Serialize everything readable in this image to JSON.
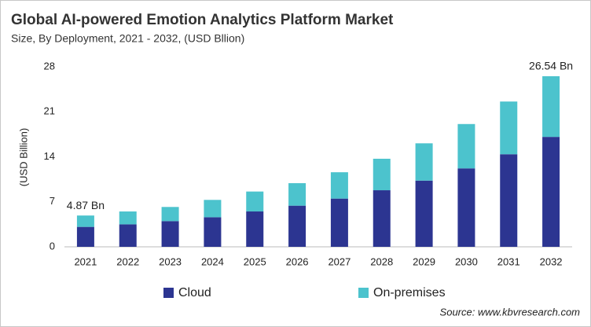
{
  "chart_data": {
    "type": "stacked_bar",
    "title": "Global AI-powered Emotion Analytics Platform Market",
    "subtitle": "Size, By Deployment, 2021 - 2032, (USD Bllion)",
    "y_label": "(USD Billion)",
    "source": "Source: www.kbvresearch.com",
    "categories": [
      "2021",
      "2022",
      "2023",
      "2024",
      "2025",
      "2026",
      "2027",
      "2028",
      "2029",
      "2030",
      "2031",
      "2032"
    ],
    "series": [
      {
        "name": "Cloud",
        "color": "#2c3591",
        "values": [
          3.1,
          3.5,
          4.0,
          4.6,
          5.5,
          6.4,
          7.5,
          8.8,
          10.3,
          12.2,
          14.4,
          17.1
        ]
      },
      {
        "name": "On-premises",
        "color": "#4cc3cd",
        "values": [
          1.77,
          2.0,
          2.2,
          2.7,
          3.1,
          3.5,
          4.1,
          4.9,
          5.8,
          6.9,
          8.2,
          9.44
        ]
      }
    ],
    "annotations": [
      {
        "category": "2021",
        "value": 4.87,
        "label": "4.87 Bn"
      },
      {
        "category": "2032",
        "value": 26.54,
        "label": "26.54 Bn"
      }
    ],
    "ylim": [
      0,
      28
    ],
    "yticks": [
      0,
      7,
      14,
      21,
      28
    ],
    "grid": false,
    "legend": "bottom"
  }
}
